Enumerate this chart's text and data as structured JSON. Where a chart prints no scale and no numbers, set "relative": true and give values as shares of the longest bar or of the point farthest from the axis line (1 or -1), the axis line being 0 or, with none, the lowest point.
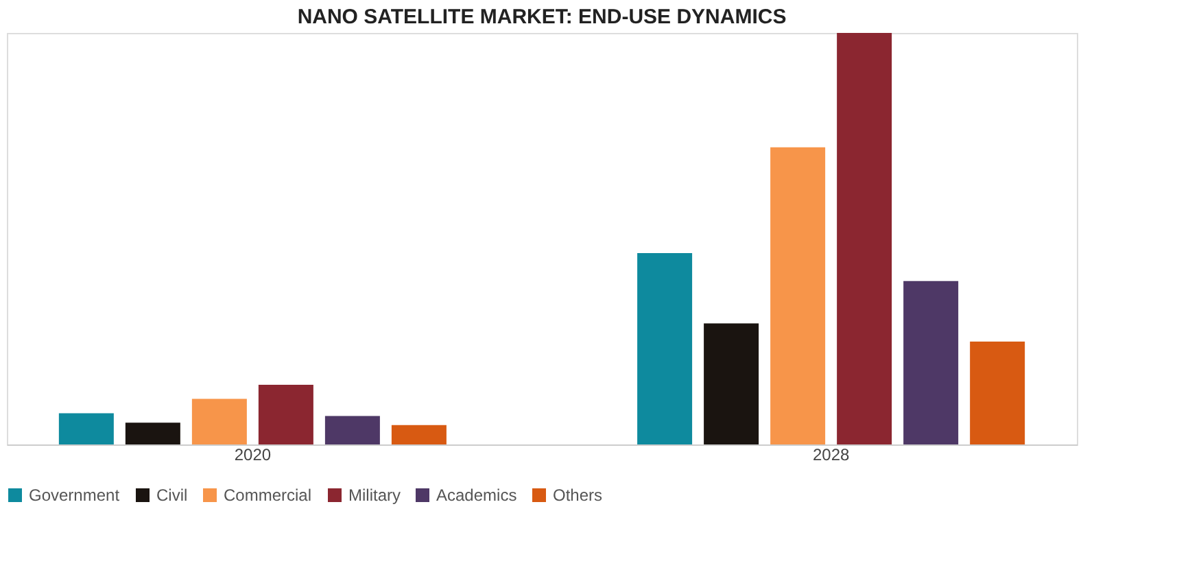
{
  "chart_data": {
    "type": "bar",
    "title": "NANO SATELLITE MARKET: END-USE DYNAMICS",
    "categories": [
      "2020",
      "2028"
    ],
    "relative": true,
    "legend": "bottom",
    "grid": false,
    "series": [
      {
        "name": "Government",
        "color": "#0e8a9e",
        "values": [
          0.076,
          0.465
        ]
      },
      {
        "name": "Civil",
        "color": "#1a1410",
        "values": [
          0.053,
          0.294
        ]
      },
      {
        "name": "Commercial",
        "color": "#f7954a",
        "values": [
          0.111,
          0.722
        ]
      },
      {
        "name": "Military",
        "color": "#8b2630",
        "values": [
          0.145,
          1
        ]
      },
      {
        "name": "Academics",
        "color": "#4e3866",
        "values": [
          0.069,
          0.397
        ]
      },
      {
        "name": "Others",
        "color": "#d85a12",
        "values": [
          0.047,
          0.25
        ]
      }
    ]
  }
}
